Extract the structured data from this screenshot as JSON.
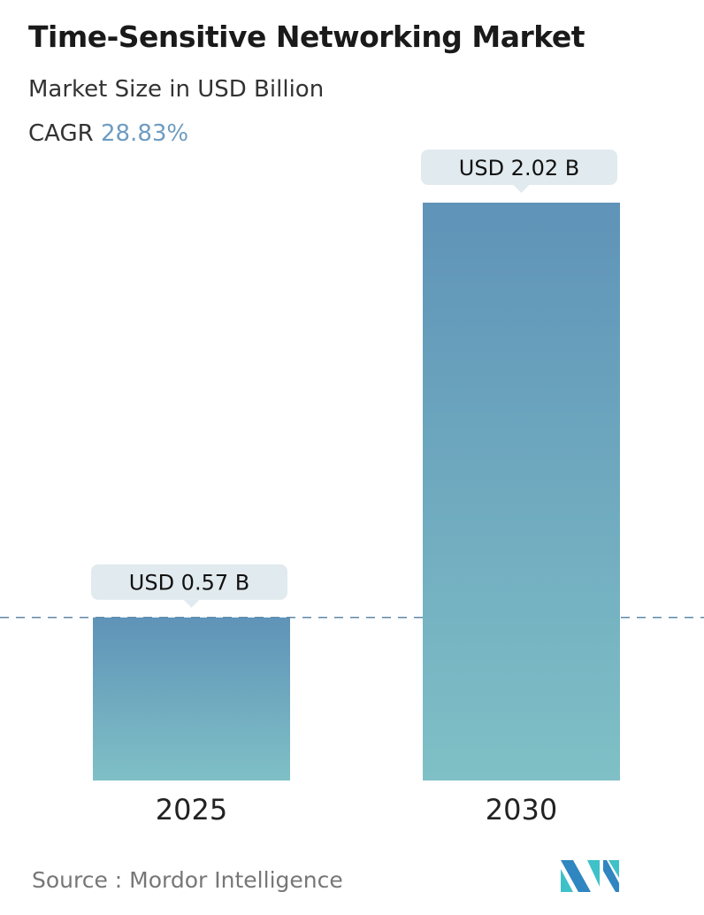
{
  "header": {
    "title": "Time-Sensitive Networking Market",
    "subtitle": "Market Size in USD Billion",
    "cagr_label": "CAGR",
    "cagr_value": "28.83%"
  },
  "chart_data": {
    "type": "bar",
    "categories": [
      "2025",
      "2030"
    ],
    "values": [
      0.57,
      2.02
    ],
    "data_labels": [
      "USD 0.57 B",
      "USD 2.02 B"
    ],
    "ylabel": "Market Size in USD Billion",
    "ylim": [
      0,
      2.02
    ],
    "grid": false,
    "reference_line": {
      "value": 0.57,
      "style": "dashed"
    },
    "colors": {
      "bar_top": "#5f93b8",
      "bar_bottom": "#7fc0c6",
      "label_bg": "#e1eaee",
      "ref_line": "#5f88a8"
    }
  },
  "footer": {
    "source": "Source :  Mordor Intelligence",
    "logo_text": "Mordor Intelligence"
  }
}
